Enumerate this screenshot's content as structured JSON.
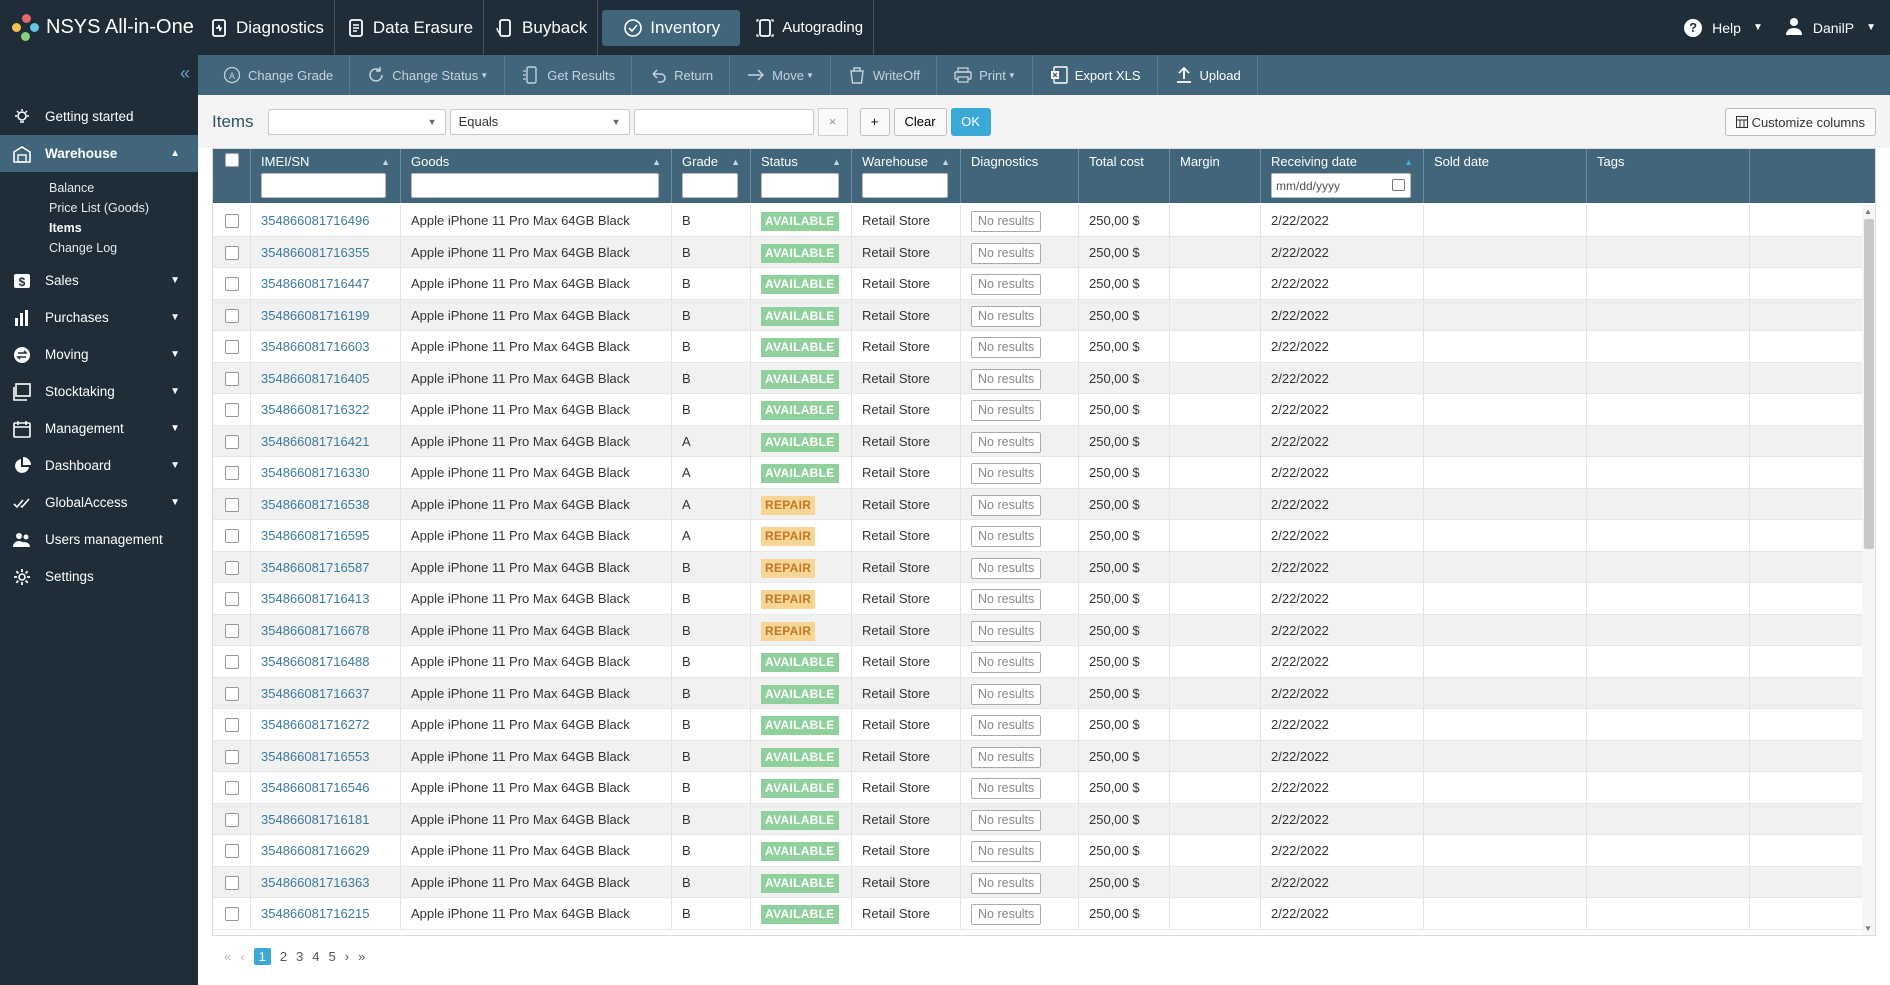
{
  "app": {
    "brand": "NSYS All-in-One",
    "modules": [
      {
        "label": "Diagnostics",
        "icon": "diagnostics-icon"
      },
      {
        "label": "Data Erasure",
        "icon": "data-erasure-icon"
      },
      {
        "label": "Buyback",
        "icon": "buyback-icon"
      },
      {
        "label": "Inventory",
        "icon": "inventory-icon"
      },
      {
        "label": "Autograding",
        "icon": "autograding-icon"
      }
    ],
    "help": "Help",
    "user": "DanilP"
  },
  "sidebar": {
    "items": [
      {
        "label": "Getting started",
        "icon": "lightbulb-icon"
      },
      {
        "label": "Warehouse",
        "icon": "warehouse-icon"
      },
      {
        "label": "Sales",
        "icon": "dollar-icon"
      },
      {
        "label": "Purchases",
        "icon": "bar-chart-icon"
      },
      {
        "label": "Moving",
        "icon": "moving-icon"
      },
      {
        "label": "Stocktaking",
        "icon": "stocktaking-icon"
      },
      {
        "label": "Management",
        "icon": "calendar-icon"
      },
      {
        "label": "Dashboard",
        "icon": "pie-chart-icon"
      },
      {
        "label": "GlobalAccess",
        "icon": "check-icon"
      },
      {
        "label": "Users management",
        "icon": "users-icon"
      },
      {
        "label": "Settings",
        "icon": "gear-icon"
      }
    ],
    "warehouse_sub": [
      "Balance",
      "Price List (Goods)",
      "Items",
      "Change Log"
    ]
  },
  "toolbar": {
    "buttons": [
      {
        "label": "Change Grade",
        "icon": "grade-icon",
        "dropdown": false
      },
      {
        "label": "Change Status",
        "icon": "refresh-icon",
        "dropdown": true
      },
      {
        "label": "Get Results",
        "icon": "results-icon",
        "dropdown": false
      },
      {
        "label": "Return",
        "icon": "return-icon",
        "dropdown": false
      },
      {
        "label": "Move",
        "icon": "arrow-right-icon",
        "dropdown": true
      },
      {
        "label": "WriteOff",
        "icon": "writeoff-icon",
        "dropdown": false
      },
      {
        "label": "Print",
        "icon": "printer-icon",
        "dropdown": true
      },
      {
        "label": "Export XLS",
        "icon": "excel-icon",
        "dropdown": false
      },
      {
        "label": "Upload",
        "icon": "upload-icon",
        "dropdown": false
      }
    ]
  },
  "filter": {
    "title": "Items",
    "field_value": "",
    "operator_value": "Equals",
    "value_input": "",
    "clear_x": "×",
    "add": "+",
    "clear": "Clear",
    "ok": "OK",
    "customize": "Customize columns"
  },
  "table": {
    "columns": [
      "IMEI/SN",
      "Goods",
      "Grade",
      "Status",
      "Warehouse",
      "Diagnostics",
      "Total cost",
      "Margin",
      "Receiving date",
      "Sold date",
      "Tags"
    ],
    "date_placeholder": "mm/dd/yyyy",
    "no_results": "No results",
    "rows": [
      {
        "imei": "354866081716496",
        "goods": "Apple iPhone 11 Pro Max 64GB Black",
        "grade": "B",
        "status": "AVAILABLE",
        "warehouse": "Retail Store",
        "cost": "250,00 $",
        "margin": "",
        "received": "2/22/2022",
        "sold": "",
        "tags": ""
      },
      {
        "imei": "354866081716355",
        "goods": "Apple iPhone 11 Pro Max 64GB Black",
        "grade": "B",
        "status": "AVAILABLE",
        "warehouse": "Retail Store",
        "cost": "250,00 $",
        "margin": "",
        "received": "2/22/2022",
        "sold": "",
        "tags": ""
      },
      {
        "imei": "354866081716447",
        "goods": "Apple iPhone 11 Pro Max 64GB Black",
        "grade": "B",
        "status": "AVAILABLE",
        "warehouse": "Retail Store",
        "cost": "250,00 $",
        "margin": "",
        "received": "2/22/2022",
        "sold": "",
        "tags": ""
      },
      {
        "imei": "354866081716199",
        "goods": "Apple iPhone 11 Pro Max 64GB Black",
        "grade": "B",
        "status": "AVAILABLE",
        "warehouse": "Retail Store",
        "cost": "250,00 $",
        "margin": "",
        "received": "2/22/2022",
        "sold": "",
        "tags": ""
      },
      {
        "imei": "354866081716603",
        "goods": "Apple iPhone 11 Pro Max 64GB Black",
        "grade": "B",
        "status": "AVAILABLE",
        "warehouse": "Retail Store",
        "cost": "250,00 $",
        "margin": "",
        "received": "2/22/2022",
        "sold": "",
        "tags": ""
      },
      {
        "imei": "354866081716405",
        "goods": "Apple iPhone 11 Pro Max 64GB Black",
        "grade": "B",
        "status": "AVAILABLE",
        "warehouse": "Retail Store",
        "cost": "250,00 $",
        "margin": "",
        "received": "2/22/2022",
        "sold": "",
        "tags": ""
      },
      {
        "imei": "354866081716322",
        "goods": "Apple iPhone 11 Pro Max 64GB Black",
        "grade": "B",
        "status": "AVAILABLE",
        "warehouse": "Retail Store",
        "cost": "250,00 $",
        "margin": "",
        "received": "2/22/2022",
        "sold": "",
        "tags": ""
      },
      {
        "imei": "354866081716421",
        "goods": "Apple iPhone 11 Pro Max 64GB Black",
        "grade": "A",
        "status": "AVAILABLE",
        "warehouse": "Retail Store",
        "cost": "250,00 $",
        "margin": "",
        "received": "2/22/2022",
        "sold": "",
        "tags": ""
      },
      {
        "imei": "354866081716330",
        "goods": "Apple iPhone 11 Pro Max 64GB Black",
        "grade": "A",
        "status": "AVAILABLE",
        "warehouse": "Retail Store",
        "cost": "250,00 $",
        "margin": "",
        "received": "2/22/2022",
        "sold": "",
        "tags": ""
      },
      {
        "imei": "354866081716538",
        "goods": "Apple iPhone 11 Pro Max 64GB Black",
        "grade": "A",
        "status": "REPAIR",
        "warehouse": "Retail Store",
        "cost": "250,00 $",
        "margin": "",
        "received": "2/22/2022",
        "sold": "",
        "tags": ""
      },
      {
        "imei": "354866081716595",
        "goods": "Apple iPhone 11 Pro Max 64GB Black",
        "grade": "A",
        "status": "REPAIR",
        "warehouse": "Retail Store",
        "cost": "250,00 $",
        "margin": "",
        "received": "2/22/2022",
        "sold": "",
        "tags": ""
      },
      {
        "imei": "354866081716587",
        "goods": "Apple iPhone 11 Pro Max 64GB Black",
        "grade": "B",
        "status": "REPAIR",
        "warehouse": "Retail Store",
        "cost": "250,00 $",
        "margin": "",
        "received": "2/22/2022",
        "sold": "",
        "tags": ""
      },
      {
        "imei": "354866081716413",
        "goods": "Apple iPhone 11 Pro Max 64GB Black",
        "grade": "B",
        "status": "REPAIR",
        "warehouse": "Retail Store",
        "cost": "250,00 $",
        "margin": "",
        "received": "2/22/2022",
        "sold": "",
        "tags": ""
      },
      {
        "imei": "354866081716678",
        "goods": "Apple iPhone 11 Pro Max 64GB Black",
        "grade": "B",
        "status": "REPAIR",
        "warehouse": "Retail Store",
        "cost": "250,00 $",
        "margin": "",
        "received": "2/22/2022",
        "sold": "",
        "tags": ""
      },
      {
        "imei": "354866081716488",
        "goods": "Apple iPhone 11 Pro Max 64GB Black",
        "grade": "B",
        "status": "AVAILABLE",
        "warehouse": "Retail Store",
        "cost": "250,00 $",
        "margin": "",
        "received": "2/22/2022",
        "sold": "",
        "tags": ""
      },
      {
        "imei": "354866081716637",
        "goods": "Apple iPhone 11 Pro Max 64GB Black",
        "grade": "B",
        "status": "AVAILABLE",
        "warehouse": "Retail Store",
        "cost": "250,00 $",
        "margin": "",
        "received": "2/22/2022",
        "sold": "",
        "tags": ""
      },
      {
        "imei": "354866081716272",
        "goods": "Apple iPhone 11 Pro Max 64GB Black",
        "grade": "B",
        "status": "AVAILABLE",
        "warehouse": "Retail Store",
        "cost": "250,00 $",
        "margin": "",
        "received": "2/22/2022",
        "sold": "",
        "tags": ""
      },
      {
        "imei": "354866081716553",
        "goods": "Apple iPhone 11 Pro Max 64GB Black",
        "grade": "B",
        "status": "AVAILABLE",
        "warehouse": "Retail Store",
        "cost": "250,00 $",
        "margin": "",
        "received": "2/22/2022",
        "sold": "",
        "tags": ""
      },
      {
        "imei": "354866081716546",
        "goods": "Apple iPhone 11 Pro Max 64GB Black",
        "grade": "B",
        "status": "AVAILABLE",
        "warehouse": "Retail Store",
        "cost": "250,00 $",
        "margin": "",
        "received": "2/22/2022",
        "sold": "",
        "tags": ""
      },
      {
        "imei": "354866081716181",
        "goods": "Apple iPhone 11 Pro Max 64GB Black",
        "grade": "B",
        "status": "AVAILABLE",
        "warehouse": "Retail Store",
        "cost": "250,00 $",
        "margin": "",
        "received": "2/22/2022",
        "sold": "",
        "tags": ""
      },
      {
        "imei": "354866081716629",
        "goods": "Apple iPhone 11 Pro Max 64GB Black",
        "grade": "B",
        "status": "AVAILABLE",
        "warehouse": "Retail Store",
        "cost": "250,00 $",
        "margin": "",
        "received": "2/22/2022",
        "sold": "",
        "tags": ""
      },
      {
        "imei": "354866081716363",
        "goods": "Apple iPhone 11 Pro Max 64GB Black",
        "grade": "B",
        "status": "AVAILABLE",
        "warehouse": "Retail Store",
        "cost": "250,00 $",
        "margin": "",
        "received": "2/22/2022",
        "sold": "",
        "tags": ""
      },
      {
        "imei": "354866081716215",
        "goods": "Apple iPhone 11 Pro Max 64GB Black",
        "grade": "B",
        "status": "AVAILABLE",
        "warehouse": "Retail Store",
        "cost": "250,00 $",
        "margin": "",
        "received": "2/22/2022",
        "sold": "",
        "tags": ""
      }
    ]
  },
  "pagination": {
    "pages": [
      "1",
      "2",
      "3",
      "4",
      "5"
    ],
    "current": "1",
    "first": "«",
    "prev": "‹",
    "next": "›",
    "last": "»"
  },
  "colors": {
    "nav_bg": "#1e2d38",
    "accent": "#41657a",
    "available": "#8fd09c",
    "repair": "#f7d594",
    "link": "#3b7aa0",
    "ok_button": "#3aa9d8"
  }
}
